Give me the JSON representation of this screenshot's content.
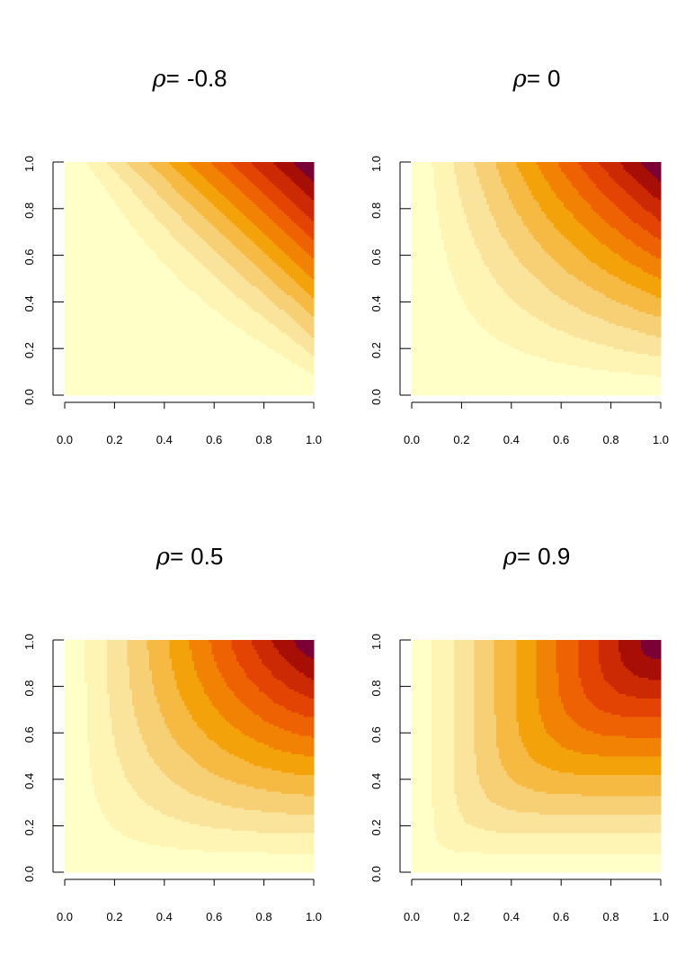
{
  "chart_data": [
    {
      "type": "heatmap",
      "title_symbol": "ρ",
      "title_equals": "=",
      "title_value": "-0.8",
      "rho": -0.8,
      "x_ticks": [
        "0.0",
        "0.2",
        "0.4",
        "0.6",
        "0.8",
        "1.0"
      ],
      "y_ticks": [
        "0.0",
        "0.2",
        "0.4",
        "0.6",
        "0.8",
        "1.0"
      ],
      "xlim": [
        0,
        1
      ],
      "ylim": [
        0,
        1
      ],
      "levels": 12,
      "grid": false
    },
    {
      "type": "heatmap",
      "title_symbol": "ρ",
      "title_equals": "=",
      "title_value": "0",
      "rho": 0,
      "x_ticks": [
        "0.0",
        "0.2",
        "0.4",
        "0.6",
        "0.8",
        "1.0"
      ],
      "y_ticks": [
        "0.0",
        "0.2",
        "0.4",
        "0.6",
        "0.8",
        "1.0"
      ],
      "xlim": [
        0,
        1
      ],
      "ylim": [
        0,
        1
      ],
      "levels": 12,
      "grid": false
    },
    {
      "type": "heatmap",
      "title_symbol": "ρ",
      "title_equals": "=",
      "title_value": "0.5",
      "rho": 0.5,
      "x_ticks": [
        "0.0",
        "0.2",
        "0.4",
        "0.6",
        "0.8",
        "1.0"
      ],
      "y_ticks": [
        "0.0",
        "0.2",
        "0.4",
        "0.6",
        "0.8",
        "1.0"
      ],
      "xlim": [
        0,
        1
      ],
      "ylim": [
        0,
        1
      ],
      "levels": 12,
      "grid": false
    },
    {
      "type": "heatmap",
      "title_symbol": "ρ",
      "title_equals": "=",
      "title_value": "0.9",
      "rho": 0.9,
      "x_ticks": [
        "0.0",
        "0.2",
        "0.4",
        "0.6",
        "0.8",
        "1.0"
      ],
      "y_ticks": [
        "0.0",
        "0.2",
        "0.4",
        "0.6",
        "0.8",
        "1.0"
      ],
      "xlim": [
        0,
        1
      ],
      "ylim": [
        0,
        1
      ],
      "levels": 12,
      "grid": false
    }
  ],
  "palette": [
    "#FFFFC8",
    "#FEF4B4",
    "#FAE39A",
    "#F7CF75",
    "#F6B942",
    "#F4A20A",
    "#F28204",
    "#EE6203",
    "#E34303",
    "#CC2A04",
    "#A70F06",
    "#7A0135",
    "#6B0040"
  ]
}
